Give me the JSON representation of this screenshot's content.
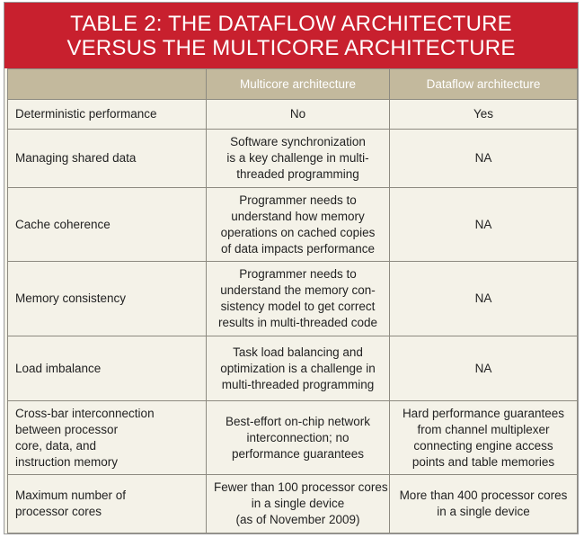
{
  "title": [
    "TABLE 2: THE DATAFLOW ARCHITECTURE",
    "VERSUS THE MULTICORE ARCHITECTURE"
  ],
  "table": {
    "header": [
      "Multicore architecture",
      "Dataflow architecture"
    ],
    "rows": [
      [
        [
          "Deterministic performance"
        ],
        [
          "No"
        ],
        [
          "Yes"
        ]
      ],
      [
        [
          "Managing shared data"
        ],
        [
          "Software  synchronization",
          "is a key challenge in multi-",
          "threaded  programming"
        ],
        [
          "NA"
        ]
      ],
      [
        [
          "Cache coherence"
        ],
        [
          "Programmer needs to",
          "understand how memory",
          "operations on cached copies",
          "of data impacts performance"
        ],
        [
          "NA"
        ]
      ],
      [
        [
          "Memory consistency"
        ],
        [
          "Programmer needs to",
          "understand the memory con-",
          "sistency model to get correct",
          "results in multi-threaded code"
        ],
        [
          "NA"
        ]
      ],
      [
        [
          "Load imbalance"
        ],
        [
          "Task  load balancing and",
          "optimization is a challenge in",
          "multi-threaded programming"
        ],
        [
          "NA"
        ]
      ],
      [
        [
          "Cross-bar interconnection",
          "between processor",
          "core, data, and",
          "instruction memory"
        ],
        [
          "Best-effort on-chip network",
          "interconnection; no",
          "performance guarantees"
        ],
        [
          "Hard performance guarantees",
          "from channel multiplexer",
          "connecting engine access",
          "points and table memories"
        ]
      ],
      [
        [
          "Maximum number of",
          "processor cores"
        ],
        [
          "Fewer than 100 processor cores",
          "in a single device",
          "(as of November 2009)"
        ],
        [
          "More than 400 processor cores",
          "in a single device"
        ]
      ]
    ]
  }
}
